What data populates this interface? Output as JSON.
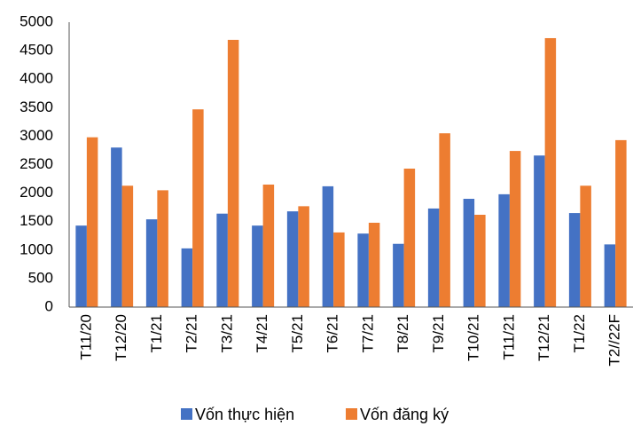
{
  "chart_data": {
    "type": "bar",
    "categories": [
      "T11/20",
      "T12/20",
      "T1/21",
      "T2/21",
      "T3/21",
      "T4/21",
      "T5/21",
      "T6/21",
      "T7/21",
      "T8/21",
      "T9/21",
      "T10/21",
      "T11/21",
      "T12/21",
      "T1/22",
      "T2//22F"
    ],
    "series": [
      {
        "name": "Vốn thực hiện",
        "color": "#4472c4",
        "values": [
          1430,
          2800,
          1540,
          1030,
          1640,
          1430,
          1680,
          2120,
          1290,
          1110,
          1730,
          1900,
          1980,
          2660,
          1650,
          1100
        ]
      },
      {
        "name": "Vốn đăng ký",
        "color": "#ed7d31",
        "values": [
          2980,
          2130,
          2050,
          3470,
          4690,
          2150,
          1770,
          1310,
          1480,
          2430,
          3050,
          1620,
          2740,
          4720,
          2130,
          2930
        ]
      }
    ],
    "ylim": [
      0,
      5000
    ],
    "yticks": [
      0,
      500,
      1000,
      1500,
      2000,
      2500,
      3000,
      3500,
      4000,
      4500,
      5000
    ],
    "grid": false,
    "legend": "bottom"
  }
}
